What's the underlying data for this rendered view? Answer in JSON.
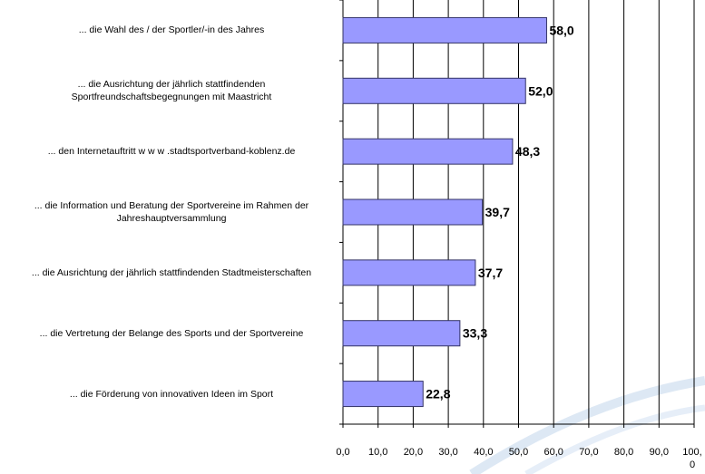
{
  "chart_data": {
    "type": "bar",
    "orientation": "horizontal",
    "categories": [
      "... die Wahl des / der Sportler/-in des Jahres",
      "... die Ausrichtung der jährlich stattfindenden\nSportfreundschaftsbegegnungen mit Maastricht",
      "... den Internetauftritt w w w .stadtsportverband-koblenz.de",
      "... die Information und Beratung der Sportvereine im Rahmen der\nJahreshauptversammlung",
      "... die Ausrichtung der jährlich stattfindenden Stadtmeisterschaften",
      "... die Vertretung der Belange des Sports und der Sportvereine",
      "... die Förderung von innovativen Ideen im Sport"
    ],
    "values": [
      58.0,
      52.0,
      48.3,
      39.7,
      37.7,
      33.3,
      22.8
    ],
    "value_labels": [
      "58,0",
      "52,0",
      "48,3",
      "39,7",
      "37,7",
      "33,3",
      "22,8"
    ],
    "color": "#9999ff",
    "xlim": [
      0,
      100
    ],
    "xticks": [
      {
        "value": 0,
        "label": "0,0"
      },
      {
        "value": 10,
        "label": "10,0"
      },
      {
        "value": 20,
        "label": "20,0"
      },
      {
        "value": 30,
        "label": "30,0"
      },
      {
        "value": 40,
        "label": "40,0"
      },
      {
        "value": 50,
        "label": "50,0"
      },
      {
        "value": 60,
        "label": "60,0"
      },
      {
        "value": 70,
        "label": "70,0"
      },
      {
        "value": 80,
        "label": "80,0"
      },
      {
        "value": 90,
        "label": "90,0"
      },
      {
        "value": 100,
        "label": "100,0"
      }
    ],
    "grid": true
  }
}
